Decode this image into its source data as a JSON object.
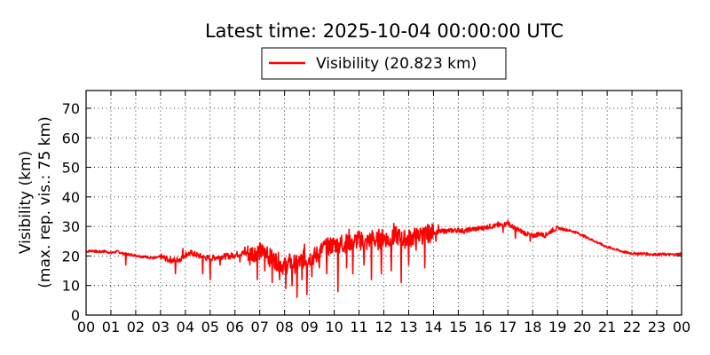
{
  "chart_data": {
    "type": "line",
    "title": "Latest time: 2025-10-04 00:00:00 UTC",
    "ylabel_line1": "Visibility (km)",
    "ylabel_line2": "(max. rep. vis.: 75 km)",
    "xlabel": "",
    "xlim": [
      0,
      24
    ],
    "ylim": [
      0,
      76
    ],
    "x_tick_labels": [
      "00",
      "01",
      "02",
      "03",
      "04",
      "05",
      "06",
      "07",
      "08",
      "09",
      "10",
      "11",
      "12",
      "13",
      "14",
      "15",
      "16",
      "17",
      "18",
      "19",
      "20",
      "21",
      "22",
      "23",
      "00"
    ],
    "y_ticks": [
      0,
      10,
      20,
      30,
      40,
      50,
      60,
      70
    ],
    "grid": true,
    "legend_position": "top-center",
    "series": [
      {
        "name": "Visibility (20.823 km)",
        "color": "#ff0000",
        "x": [
          0,
          0.25,
          0.5,
          0.75,
          1,
          1.25,
          1.5,
          1.75,
          2,
          2.25,
          2.5,
          2.75,
          3,
          3.25,
          3.5,
          3.75,
          4,
          4.25,
          4.5,
          4.75,
          5,
          5.25,
          5.5,
          5.75,
          6,
          6.25,
          6.5,
          6.75,
          7,
          7.25,
          7.5,
          7.75,
          8,
          8.25,
          8.5,
          8.75,
          9,
          9.25,
          9.5,
          9.75,
          10,
          10.25,
          10.5,
          10.75,
          11,
          11.25,
          11.5,
          11.75,
          12,
          12.25,
          12.5,
          12.75,
          13,
          13.25,
          13.5,
          13.75,
          14,
          14.25,
          14.5,
          14.75,
          15,
          15.25,
          15.5,
          15.75,
          16,
          16.25,
          16.5,
          16.75,
          17,
          17.25,
          17.5,
          17.75,
          18,
          18.25,
          18.5,
          18.75,
          19,
          19.25,
          19.5,
          19.75,
          20,
          20.25,
          20.5,
          20.75,
          21,
          21.25,
          21.5,
          21.75,
          22,
          22.25,
          22.5,
          22.75,
          23,
          23.25,
          23.5,
          23.75,
          24
        ],
        "y": [
          21.5,
          21.8,
          21.4,
          21.6,
          21.0,
          21.5,
          20.8,
          20.5,
          20.2,
          19.8,
          19.6,
          19.2,
          19.8,
          19.0,
          18.5,
          18.8,
          20.5,
          21.0,
          20.2,
          19.5,
          19.2,
          19.6,
          19.8,
          20.0,
          20.4,
          20.8,
          21.0,
          21.2,
          21.5,
          20.5,
          19.0,
          18.0,
          16.5,
          18.0,
          17.0,
          19.0,
          19.5,
          20.0,
          22.0,
          23.0,
          24.0,
          23.5,
          24.5,
          25.0,
          25.5,
          24.0,
          26.0,
          25.0,
          26.5,
          25.0,
          27.0,
          25.5,
          26.0,
          26.5,
          27.0,
          27.5,
          28.0,
          28.2,
          28.5,
          28.6,
          28.8,
          28.4,
          29.0,
          29.2,
          29.5,
          30.0,
          30.2,
          30.5,
          31.0,
          29.5,
          28.5,
          27.5,
          26.8,
          27.5,
          27.0,
          28.5,
          29.5,
          29.0,
          28.6,
          28.0,
          27.0,
          26.0,
          25.0,
          24.0,
          23.0,
          22.5,
          21.8,
          21.2,
          20.9,
          20.8,
          20.8,
          20.6,
          20.5,
          20.6,
          20.5,
          20.5,
          20.8
        ],
        "dips": [
          [
            1.6,
            17
          ],
          [
            2.7,
            19
          ],
          [
            3.3,
            18
          ],
          [
            3.6,
            14
          ],
          [
            3.8,
            18
          ],
          [
            4.2,
            21
          ],
          [
            4.7,
            14
          ],
          [
            5,
            12
          ],
          [
            5.4,
            17
          ],
          [
            5.8,
            19
          ],
          [
            6.2,
            18
          ],
          [
            6.6,
            17
          ],
          [
            6.9,
            12
          ],
          [
            7.2,
            15
          ],
          [
            7.5,
            11
          ],
          [
            7.8,
            12
          ],
          [
            8.05,
            9
          ],
          [
            8.3,
            10
          ],
          [
            8.5,
            6
          ],
          [
            8.7,
            12
          ],
          [
            8.9,
            7
          ],
          [
            9.1,
            13
          ],
          [
            9.4,
            16
          ],
          [
            9.7,
            14
          ],
          [
            10.15,
            8
          ],
          [
            10.5,
            16
          ],
          [
            10.75,
            14
          ],
          [
            11.2,
            17
          ],
          [
            11.5,
            12
          ],
          [
            11.9,
            14
          ],
          [
            12.3,
            15
          ],
          [
            12.7,
            11
          ],
          [
            13.0,
            17
          ],
          [
            13.3,
            22
          ],
          [
            13.65,
            16
          ],
          [
            14.1,
            25
          ],
          [
            16.8,
            28
          ],
          [
            17.3,
            26
          ],
          [
            17.9,
            25
          ]
        ],
        "spikes": [
          [
            3.9,
            22.5
          ],
          [
            6.4,
            23
          ],
          [
            7.3,
            23
          ],
          [
            8.8,
            24
          ],
          [
            9.6,
            25
          ],
          [
            10.3,
            27
          ],
          [
            10.6,
            29
          ],
          [
            11.1,
            28
          ],
          [
            11.8,
            29
          ],
          [
            12.4,
            31
          ],
          [
            13.5,
            29
          ],
          [
            14.2,
            30.5
          ],
          [
            16.6,
            31.5
          ],
          [
            17.0,
            32
          ]
        ]
      }
    ]
  }
}
